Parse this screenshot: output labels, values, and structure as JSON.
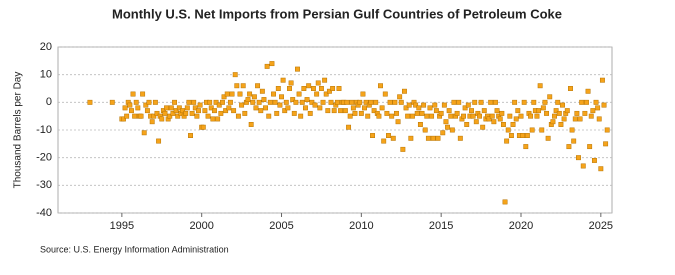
{
  "chart_data": {
    "type": "scatter",
    "title": "Monthly U.S. Net Imports from Persian Gulf Countries of Petroleum Coke",
    "y_label": "Thousand Barrels per Day",
    "source": "Source: U.S. Energy Information Administration",
    "color": "#f5a31a",
    "grid": true,
    "xlim": [
      1991,
      2025.7
    ],
    "ylim": [
      -40,
      20
    ],
    "xticks": [
      1995,
      2000,
      2005,
      2010,
      2015,
      2020,
      2025
    ],
    "yticks": [
      -40,
      -30,
      -20,
      -10,
      0,
      10,
      20
    ],
    "x": [
      1993,
      1994.4,
      1995,
      1995.1,
      1995.2,
      1995.3,
      1995.4,
      1995.5,
      1995.6,
      1995.7,
      1995.8,
      1995.9,
      1996,
      1996.1,
      1996.2,
      1996.3,
      1996.4,
      1996.5,
      1996.6,
      1996.7,
      1996.8,
      1996.9,
      1997,
      1997.1,
      1997.2,
      1997.3,
      1997.4,
      1997.5,
      1997.6,
      1997.7,
      1997.8,
      1997.9,
      1998,
      1998.1,
      1998.2,
      1998.3,
      1998.4,
      1998.5,
      1998.6,
      1998.7,
      1998.8,
      1998.9,
      1999,
      1999.1,
      1999.2,
      1999.3,
      1999.4,
      1999.5,
      1999.6,
      1999.7,
      1999.8,
      1999.9,
      2000,
      2000.1,
      2000.2,
      2000.3,
      2000.4,
      2000.5,
      2000.6,
      2000.7,
      2000.8,
      2000.9,
      2001,
      2001.1,
      2001.2,
      2001.3,
      2001.4,
      2001.5,
      2001.6,
      2001.7,
      2001.8,
      2001.9,
      2002,
      2002.1,
      2002.2,
      2002.3,
      2002.4,
      2002.5,
      2002.6,
      2002.7,
      2002.8,
      2002.9,
      2003,
      2003.1,
      2003.2,
      2003.3,
      2003.4,
      2003.5,
      2003.6,
      2003.7,
      2003.8,
      2003.9,
      2004,
      2004.1,
      2004.2,
      2004.3,
      2004.4,
      2004.5,
      2004.6,
      2004.7,
      2004.8,
      2004.9,
      2005,
      2005.1,
      2005.2,
      2005.3,
      2005.4,
      2005.5,
      2005.6,
      2005.7,
      2005.8,
      2005.9,
      2006,
      2006.1,
      2006.2,
      2006.3,
      2006.4,
      2006.5,
      2006.6,
      2006.7,
      2006.8,
      2006.9,
      2007,
      2007.1,
      2007.2,
      2007.3,
      2007.4,
      2007.5,
      2007.6,
      2007.7,
      2007.8,
      2007.9,
      2008,
      2008.1,
      2008.2,
      2008.3,
      2008.4,
      2008.5,
      2008.6,
      2008.7,
      2008.8,
      2008.9,
      2009,
      2009.1,
      2009.2,
      2009.3,
      2009.4,
      2009.5,
      2009.6,
      2009.7,
      2009.8,
      2009.9,
      2010,
      2010.1,
      2010.2,
      2010.3,
      2010.4,
      2010.5,
      2010.6,
      2010.7,
      2010.8,
      2010.9,
      2011,
      2011.1,
      2011.2,
      2011.3,
      2011.4,
      2011.5,
      2011.6,
      2011.7,
      2011.8,
      2011.9,
      2012,
      2012.1,
      2012.2,
      2012.3,
      2012.4,
      2012.5,
      2012.6,
      2012.7,
      2012.8,
      2012.9,
      2013,
      2013.1,
      2013.2,
      2013.3,
      2013.4,
      2013.5,
      2013.6,
      2013.7,
      2013.8,
      2013.9,
      2014,
      2014.1,
      2014.2,
      2014.3,
      2014.4,
      2014.5,
      2014.6,
      2014.7,
      2014.8,
      2014.9,
      2015,
      2015.1,
      2015.2,
      2015.3,
      2015.4,
      2015.5,
      2015.6,
      2015.7,
      2015.8,
      2015.9,
      2016,
      2016.1,
      2016.2,
      2016.3,
      2016.4,
      2016.5,
      2016.6,
      2016.7,
      2016.8,
      2016.9,
      2017,
      2017.1,
      2017.2,
      2017.3,
      2017.4,
      2017.5,
      2017.6,
      2017.7,
      2017.8,
      2017.9,
      2018,
      2018.1,
      2018.2,
      2018.3,
      2018.4,
      2018.5,
      2018.6,
      2018.7,
      2018.8,
      2018.9,
      2019,
      2019.1,
      2019.2,
      2019.3,
      2019.4,
      2019.5,
      2019.6,
      2019.7,
      2019.8,
      2019.9,
      2020,
      2020.1,
      2020.2,
      2020.3,
      2020.4,
      2020.5,
      2020.6,
      2020.7,
      2020.8,
      2020.9,
      2021,
      2021.1,
      2021.2,
      2021.3,
      2021.4,
      2021.5,
      2021.6,
      2021.7,
      2021.8,
      2021.9,
      2022,
      2022.1,
      2022.2,
      2022.3,
      2022.4,
      2022.5,
      2022.6,
      2022.7,
      2022.8,
      2022.9,
      2023,
      2023.1,
      2023.2,
      2023.3,
      2023.4,
      2023.5,
      2023.6,
      2023.7,
      2023.8,
      2023.9,
      2024,
      2024.1,
      2024.2,
      2024.3,
      2024.4,
      2024.5,
      2024.6,
      2024.7,
      2024.8,
      2024.9,
      2025,
      2025.1,
      2025.2,
      2025.3,
      2025.4
    ],
    "values": [
      0,
      0,
      -6,
      -6,
      -2,
      -5,
      0,
      -1,
      -3,
      3,
      -5,
      0,
      -2,
      -5,
      -5,
      3,
      -11,
      -1,
      -3,
      0,
      -5,
      -7,
      -5,
      0,
      -4,
      -14,
      -5,
      -6,
      -3,
      -4,
      -2,
      -6,
      -5,
      -2,
      -4,
      0,
      -3,
      -5,
      -2,
      -4,
      -3,
      -5,
      -4,
      -2,
      0,
      -12,
      -4,
      0,
      -2,
      -5,
      -3,
      -1,
      -9,
      -9,
      -3,
      0,
      -5,
      0,
      -2,
      -6,
      -3,
      0,
      -6,
      -1,
      -4,
      0,
      2,
      -3,
      3,
      -2,
      0,
      3,
      -3,
      10,
      6,
      -5,
      3,
      -1,
      6,
      -4,
      0,
      1,
      3,
      -8,
      0,
      2,
      -2,
      6,
      0,
      -3,
      4,
      1,
      -2,
      13,
      -5,
      0,
      14,
      3,
      0,
      -4,
      5,
      -1,
      2,
      8,
      -3,
      0,
      -2,
      5,
      7,
      1,
      -4,
      0,
      12,
      3,
      -5,
      0,
      5,
      -2,
      1,
      6,
      -4,
      0,
      5,
      -1,
      3,
      7,
      -2,
      5,
      0,
      8,
      3,
      -3,
      4,
      0,
      5,
      -3,
      -1,
      0,
      5,
      -3,
      0,
      0,
      -3,
      0,
      -9,
      -5,
      0,
      -2,
      -4,
      0,
      -1,
      0,
      -4,
      3,
      -2,
      0,
      -5,
      -1,
      0,
      -12,
      -3,
      0,
      -4,
      -5,
      6,
      -2,
      -14,
      3,
      -4,
      -12,
      0,
      -5,
      -13,
      0,
      -4,
      -7,
      2,
      0,
      -17,
      4,
      -2,
      -5,
      -1,
      -13,
      -5,
      0,
      -1,
      -4,
      -2,
      -8,
      -4,
      -1,
      -10,
      -5,
      -13,
      -2,
      -5,
      -13,
      -1,
      -3,
      -13,
      -5,
      -4,
      -11,
      -1,
      -7,
      -9,
      -3,
      -5,
      -10,
      0,
      -5,
      -4,
      0,
      -13,
      -6,
      -5,
      -2,
      -8,
      -1,
      -5,
      -3,
      -5,
      0,
      -7,
      -4,
      -5,
      0,
      -9,
      -3,
      -6,
      -5,
      -6,
      0,
      -5,
      -7,
      0,
      -3,
      -5,
      -6,
      -4,
      -8,
      -36,
      -14,
      -10,
      -5,
      -12,
      -8,
      0,
      -6,
      -3,
      -12,
      -5,
      -12,
      0,
      -16,
      -12,
      -4,
      -5,
      -10,
      0,
      -3,
      -5,
      -3,
      6,
      -10,
      -2,
      0,
      -4,
      -13,
      2,
      -8,
      -7,
      -5,
      -3,
      0,
      -4,
      -8,
      -1,
      -6,
      -4,
      -3,
      -16,
      5,
      -10,
      -14,
      -6,
      -4,
      -20,
      -6,
      0,
      -23,
      -4,
      0,
      4,
      -16,
      -5,
      -3,
      -21,
      0,
      -2,
      -6,
      -24,
      8,
      -1,
      -15,
      -10
    ]
  }
}
